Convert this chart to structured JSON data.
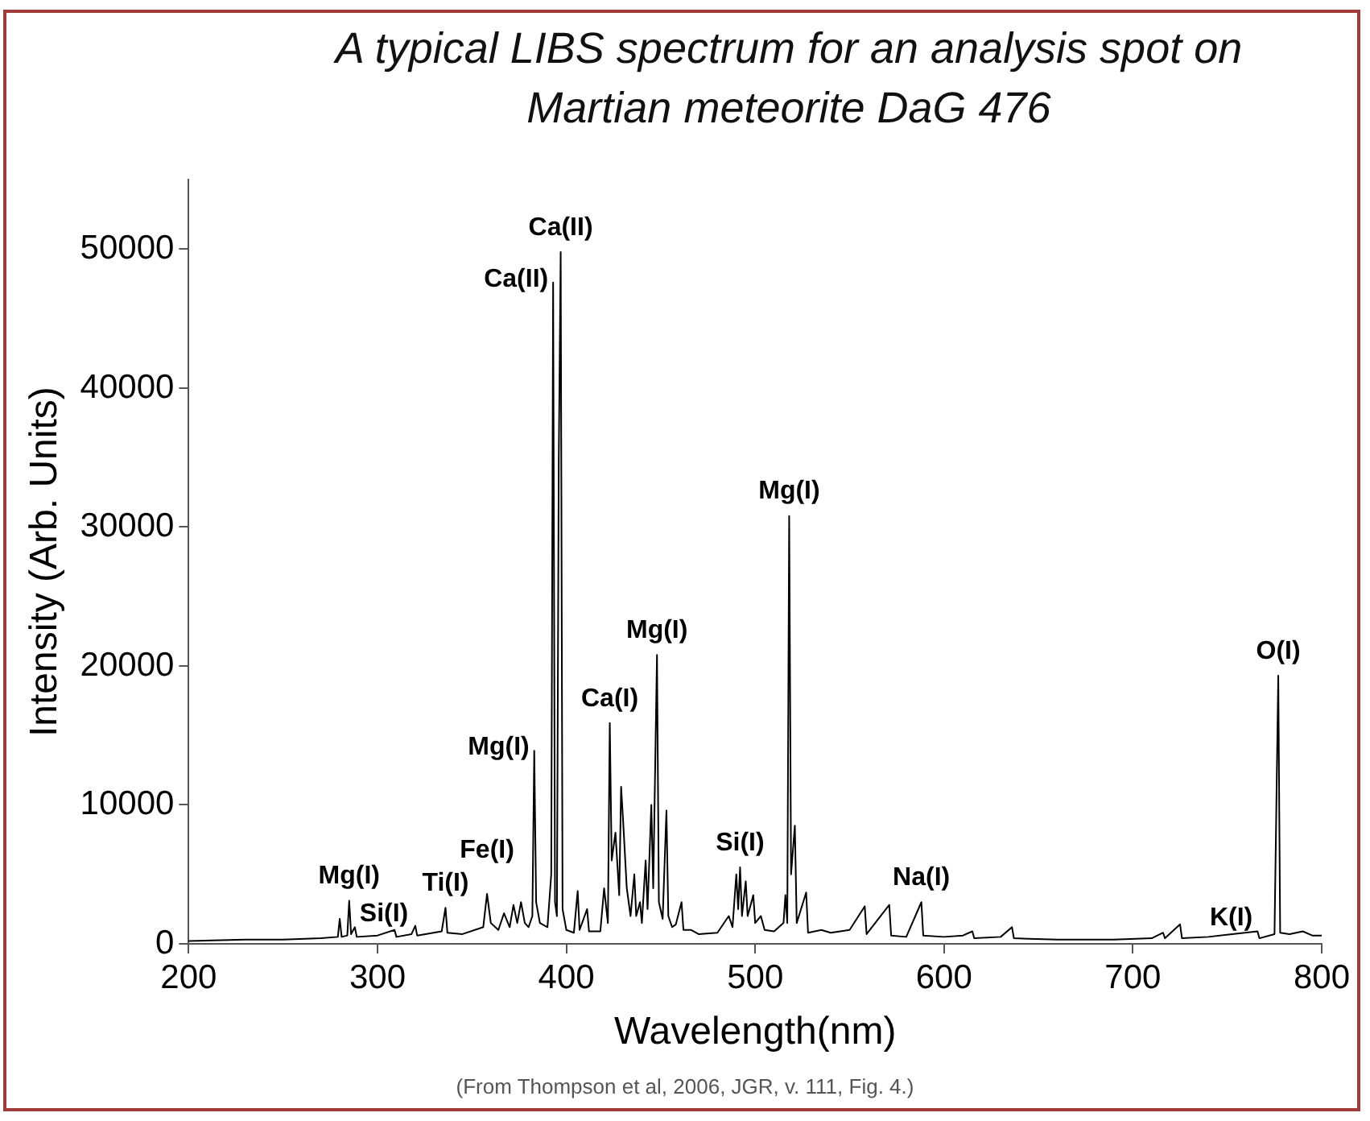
{
  "chart_data": {
    "type": "line",
    "title": "A typical LIBS spectrum for an analysis spot on Martian meteorite DaG 476",
    "xlabel": "Wavelength(nm)",
    "ylabel": "Intensity (Arb. Units)",
    "xlim": [
      200,
      800
    ],
    "xticks": [
      200,
      300,
      400,
      500,
      600,
      700,
      800
    ],
    "ylim": [
      0,
      55000
    ],
    "yticks": [
      0,
      10000,
      20000,
      30000,
      40000,
      50000
    ],
    "grid": false,
    "legend": false,
    "marker": "none",
    "line_style": "solid",
    "series": [
      {
        "color": "#000000",
        "x": [
          200,
          230,
          250,
          270,
          279,
          280,
          281,
          284,
          285,
          286,
          288,
          289,
          300,
          309,
          310,
          318,
          320,
          321,
          334,
          336,
          337,
          345,
          356,
          358,
          360,
          364,
          367,
          370,
          372,
          374,
          376,
          378,
          380,
          382,
          383,
          384,
          386,
          390,
          392,
          393,
          394,
          395,
          396,
          397,
          398,
          400,
          404,
          406,
          407,
          411,
          412,
          418,
          420,
          422,
          423,
          424,
          426,
          428,
          429,
          430,
          431,
          432,
          434,
          436,
          437,
          439,
          440,
          442,
          443,
          445,
          446,
          448,
          449,
          451,
          453,
          454,
          456,
          458,
          461,
          462,
          466,
          470,
          480,
          486,
          488,
          490,
          491,
          492,
          493,
          495,
          496,
          499,
          500,
          503,
          505,
          510,
          515,
          516,
          517,
          518,
          519,
          521,
          522,
          527,
          528,
          535,
          540,
          550,
          558,
          559,
          571,
          572,
          580,
          588,
          589,
          600,
          610,
          615,
          616,
          630,
          636,
          637,
          660,
          690,
          710,
          716,
          717,
          725,
          726,
          740,
          766,
          767,
          775,
          777,
          778,
          783,
          790,
          795,
          800
        ],
        "values": [
          200,
          300,
          300,
          400,
          500,
          1800,
          500,
          600,
          3100,
          700,
          1200,
          500,
          600,
          1000,
          500,
          700,
          1300,
          600,
          900,
          2600,
          800,
          700,
          1200,
          3600,
          1500,
          1000,
          2200,
          1200,
          2800,
          1500,
          3000,
          1500,
          1200,
          2000,
          13900,
          3000,
          1500,
          1200,
          5000,
          47600,
          3000,
          2000,
          35000,
          49800,
          2500,
          1000,
          800,
          3800,
          1000,
          2500,
          900,
          900,
          4000,
          1500,
          15900,
          6000,
          8000,
          3500,
          11300,
          9000,
          6500,
          4000,
          2000,
          5000,
          2000,
          3000,
          1500,
          6000,
          2500,
          10000,
          4000,
          20800,
          3000,
          1800,
          9600,
          2000,
          1200,
          1400,
          3000,
          1000,
          1000,
          700,
          800,
          2000,
          1200,
          5000,
          2500,
          5500,
          2000,
          4500,
          2000,
          3500,
          1500,
          2000,
          1000,
          900,
          1500,
          3500,
          1500,
          30800,
          5000,
          8500,
          1500,
          3700,
          800,
          1000,
          800,
          1000,
          2700,
          700,
          2800,
          600,
          500,
          3000,
          600,
          500,
          600,
          900,
          400,
          500,
          1200,
          400,
          300,
          300,
          400,
          800,
          400,
          1400,
          400,
          500,
          900,
          400,
          700,
          19300,
          800,
          700,
          900,
          600,
          600
        ]
      }
    ],
    "annotations": [
      {
        "text": "Ca(II)",
        "x": 397,
        "y": 49800
      },
      {
        "text": "Ca(II)",
        "x": 393,
        "y": 47600
      },
      {
        "text": "Mg(I)",
        "x": 383,
        "y": 13900
      },
      {
        "text": "Ca(I)",
        "x": 423,
        "y": 15900
      },
      {
        "text": "Mg(I)",
        "x": 448,
        "y": 20800
      },
      {
        "text": "Mg(I)",
        "x": 518,
        "y": 30800
      },
      {
        "text": "O(I)",
        "x": 777,
        "y": 19300
      },
      {
        "text": "Na(I)",
        "x": 588,
        "y": 3000
      },
      {
        "text": "K(I)",
        "x": 766,
        "y": 900
      },
      {
        "text": "Si(I)",
        "x": 492,
        "y": 5500
      },
      {
        "text": "Mg(I)",
        "x": 285,
        "y": 3100
      },
      {
        "text": "Si(I)",
        "x": 288,
        "y": 1200
      },
      {
        "text": "Ti(I)",
        "x": 336,
        "y": 2600
      },
      {
        "text": "Fe(I)",
        "x": 358,
        "y": 3600
      },
      "(From Thompson et al, 2006, JGR, v. 111, Fig. 4.)"
    ]
  }
}
